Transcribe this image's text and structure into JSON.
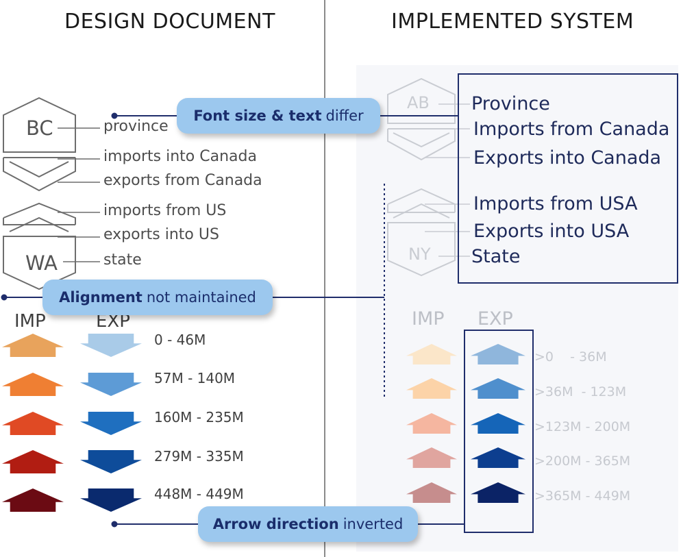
{
  "headings": {
    "left": "DESIGN DOCUMENT",
    "right": "IMPLEMENTED SYSTEM"
  },
  "design": {
    "hex_labels": {
      "top": "BC",
      "bottom": "WA"
    },
    "labels": [
      "province",
      "imports into Canada",
      "exports from Canada",
      "imports from US",
      "exports into US",
      "state"
    ],
    "legend": {
      "imp_header": "IMP",
      "exp_header": "EXP",
      "ranges": [
        "0 - 46M",
        "57M - 140M",
        "160M - 235M",
        "279M - 335M",
        "448M - 449M"
      ],
      "imp_colors": [
        "#e8a35c",
        "#ef7f33",
        "#e04a24",
        "#b11d12",
        "#6b0b13"
      ],
      "exp_colors": [
        "#a9cbe8",
        "#5d9bd6",
        "#1f6fbf",
        "#0e4c9a",
        "#0a2a6e"
      ]
    }
  },
  "implemented": {
    "hex_labels": {
      "top": "AB",
      "bottom": "NY"
    },
    "labels": [
      "Province",
      "Imports from Canada",
      "Exports into Canada",
      "Imports from USA",
      "Exports into USA",
      "State"
    ],
    "legend": {
      "imp_header": "IMP",
      "exp_header": "EXP",
      "ranges": [
        ">0    - 36M",
        ">36M  - 123M",
        ">123M - 200M",
        ">200M - 365M",
        ">365M - 449M"
      ],
      "imp_colors": [
        "#fbe6c9",
        "#fcd3a8",
        "#f5b6a0",
        "#e0a59f",
        "#c68d8d"
      ],
      "exp_colors": [
        "#8fb6dc",
        "#4f8fcd",
        "#1565b8",
        "#0d3e8f",
        "#0b2366"
      ]
    }
  },
  "callouts": {
    "font": {
      "bold": "Font size & text",
      "rest": "differ"
    },
    "alignment": {
      "bold": "Alignment",
      "rest": "not maintained"
    },
    "arrow": {
      "bold": "Arrow direction",
      "rest": "inverted"
    }
  },
  "colors": {
    "callout_fill": "#9cc8ee",
    "callout_text": "#1a2d6b",
    "leader_line": "#1f2d6b",
    "outline_box": "#1f2d6b"
  }
}
